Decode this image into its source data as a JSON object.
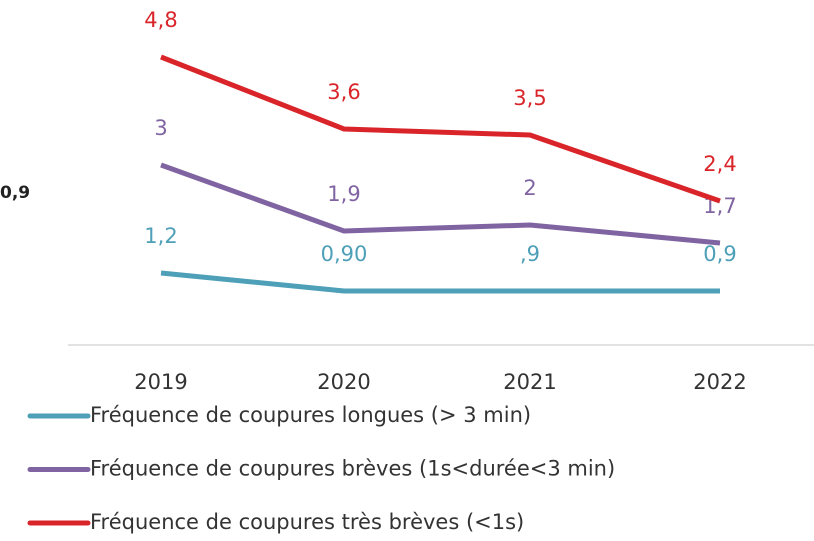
{
  "chart_data": {
    "type": "line",
    "categories": [
      "2019",
      "2020",
      "2021",
      "2022"
    ],
    "series": [
      {
        "name": "Fréquence de coupures longues (> 3 min)",
        "color": "#4e9fb8",
        "values": [
          1.2,
          0.9,
          0.9,
          0.9
        ],
        "value_labels": [
          "1,2",
          "0,90",
          ",9",
          "0,9"
        ]
      },
      {
        "name": "Fréquence de coupures brèves (1s<durée<3 min)",
        "color": "#8064a2",
        "values": [
          3,
          1.9,
          2,
          1.7
        ],
        "value_labels": [
          "3",
          "1,9",
          "2",
          "1,7"
        ]
      },
      {
        "name": "Fréquence de coupures très brèves (<1s)",
        "color": "#d9252a",
        "values": [
          4.8,
          3.6,
          3.5,
          2.4
        ],
        "value_labels": [
          "4,8",
          "3,6",
          "3,5",
          "2,4"
        ]
      }
    ],
    "ylim": [
      0,
      5.75
    ],
    "annotations": [
      "0,9"
    ],
    "legend": "bottom"
  }
}
